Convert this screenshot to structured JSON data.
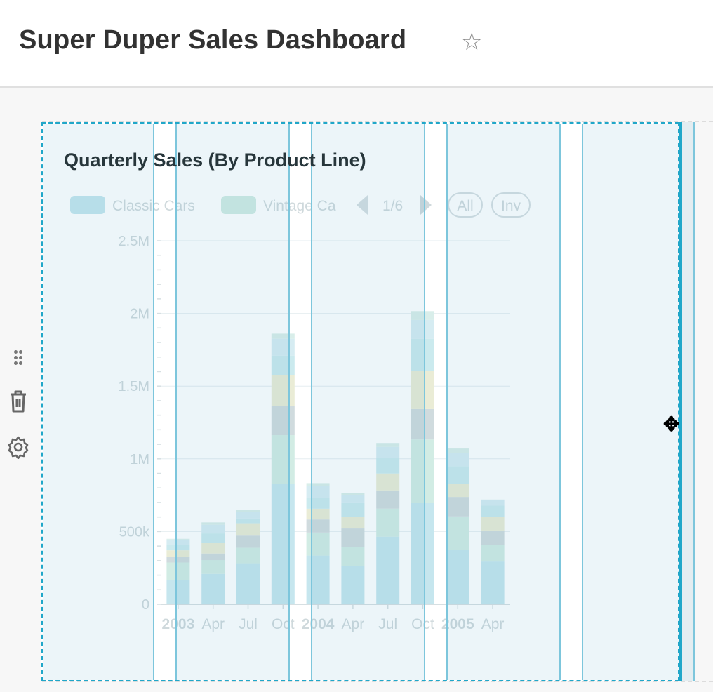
{
  "header": {
    "title": "Super Duper Sales Dashboard",
    "star_icon": "star-outline-icon"
  },
  "edit_tools": {
    "drag_icon": "drag-handle-icon",
    "delete_icon": "trash-icon",
    "settings_icon": "gear-icon"
  },
  "chart": {
    "title": "Quarterly Sales (By Product Line)",
    "legend": {
      "items": [
        "Classic Cars",
        "Vintage Ca"
      ],
      "page": "1/6",
      "all_label": "All",
      "inv_label": "Inv"
    },
    "accent_color": "#20a7c9"
  },
  "chart_data": {
    "type": "bar",
    "stacked": true,
    "categories": [
      "2003",
      "Apr",
      "Jul",
      "Oct",
      "2004",
      "Apr",
      "Jul",
      "Oct",
      "2005",
      "Apr"
    ],
    "bold_categories": [
      "2003",
      "2004",
      "2005"
    ],
    "y_ticks": [
      "0",
      "500k",
      "1M",
      "1.5M",
      "2M",
      "2.5M"
    ],
    "ylim": [
      0,
      2500000
    ],
    "grid": true,
    "legend_position": "top",
    "series": [
      {
        "name": "Classic Cars",
        "color": "#c6e6ee",
        "values": [
          166000,
          209000,
          282000,
          827000,
          335000,
          262000,
          465000,
          697000,
          376000,
          294000
        ]
      },
      {
        "name": "Vintage Cars",
        "color": "#d2ece4",
        "values": [
          121000,
          95000,
          106000,
          336000,
          158000,
          132000,
          193000,
          436000,
          228000,
          116000
        ]
      },
      {
        "color": "#d0dbde",
        "values": [
          37000,
          45000,
          84000,
          198000,
          90000,
          127000,
          125000,
          209000,
          134000,
          97000
        ]
      },
      {
        "color": "#eaecd6",
        "values": [
          47000,
          74000,
          85000,
          217000,
          74000,
          82000,
          116000,
          262000,
          90000,
          92000
        ]
      },
      {
        "color": "#cbeaee",
        "values": [
          37000,
          64000,
          32000,
          132000,
          72000,
          97000,
          109000,
          222000,
          121000,
          79000
        ]
      },
      {
        "color": "#d6ecf2",
        "values": [
          37000,
          60000,
          48000,
          116000,
          85000,
          53000,
          74000,
          129000,
          93000,
          42000
        ]
      },
      {
        "color": "#d9eeea",
        "values": [
          5000,
          16000,
          14000,
          35000,
          19000,
          13000,
          27000,
          61000,
          29000,
          0
        ]
      }
    ]
  }
}
